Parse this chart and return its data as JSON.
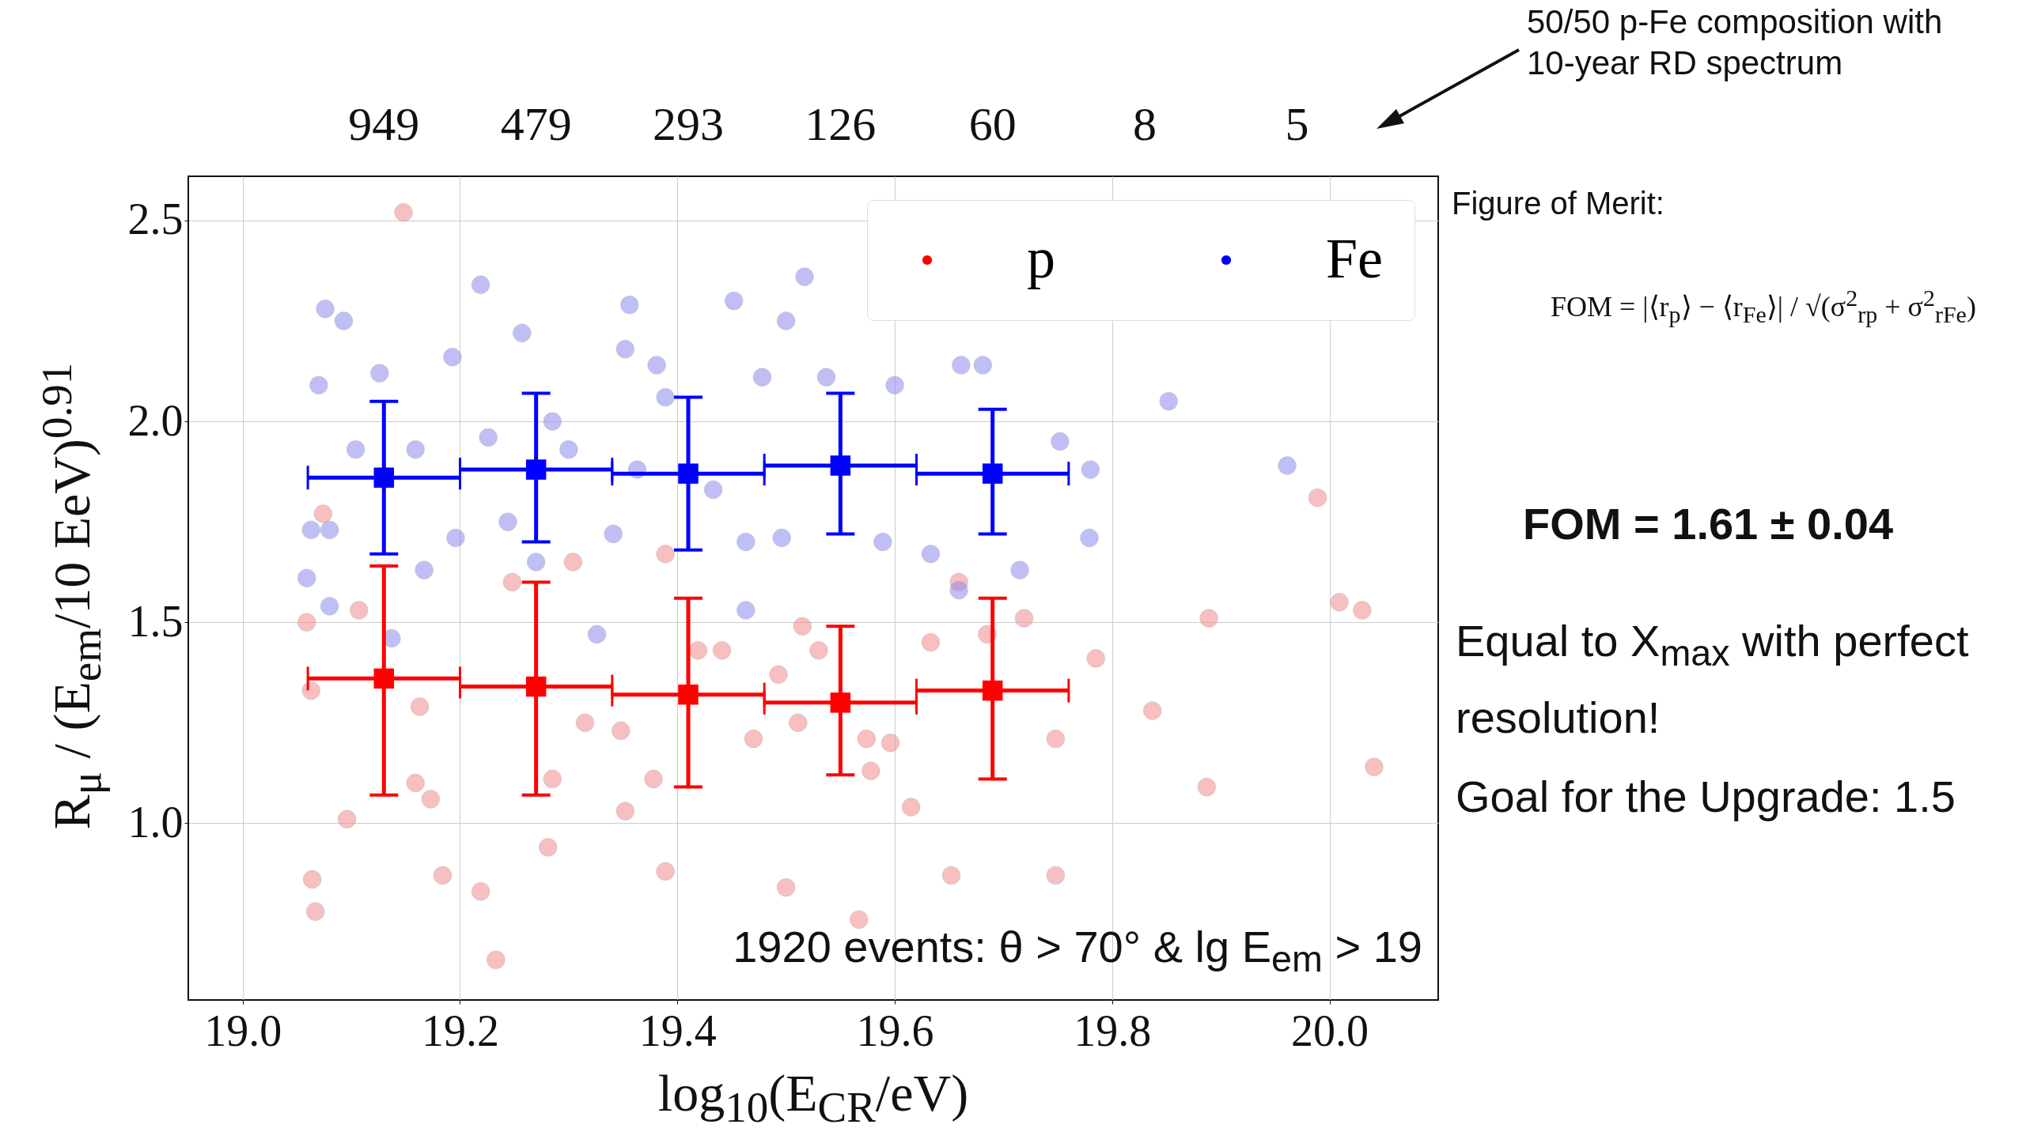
{
  "chart_data": {
    "type": "scatter",
    "xlabel": "log$_{10}$(E$_{CR}$/eV)",
    "ylabel": "R$_{μ}$ / (E$_{em}$/10 EeV)$^{0.91}$",
    "xlim": [
      18.95,
      20.1
    ],
    "xticks": [
      {
        "value": 19.0,
        "label": "19.0"
      },
      19.2,
      19.4,
      19.6,
      19.8,
      {
        "value": 20.0,
        "label": "20.0"
      }
    ],
    "ylim": [
      0.56,
      2.61
    ],
    "yticks": [
      {
        "value": 1.0,
        "label": "1.0"
      },
      1.5,
      {
        "value": 2.0,
        "label": "2.0"
      },
      2.5
    ],
    "grid": true,
    "legend": "top right",
    "marker": "circle",
    "series": [
      {
        "color": "#f28c8c",
        "x": [
          19.148,
          19.059,
          19.064,
          19.067,
          19.096,
          19.233,
          19.184,
          19.173,
          19.159,
          19.074,
          19.063,
          19.107,
          19.163,
          19.248,
          19.304,
          19.285,
          19.315,
          19.348,
          19.352,
          19.389,
          19.378,
          19.419,
          19.441,
          19.47,
          19.493,
          19.515,
          19.53,
          19.511,
          19.574,
          19.578,
          19.615,
          19.596,
          19.633,
          19.659,
          19.685,
          19.719,
          19.748,
          19.748,
          19.567,
          19.785,
          19.837,
          19.889,
          19.887,
          19.989,
          20.009,
          20.03,
          20.041,
          19.219,
          19.389,
          19.5,
          19.652,
          19.281
        ],
        "values": [
          2.52,
          1.5,
          0.86,
          0.78,
          1.01,
          0.66,
          0.87,
          1.06,
          1.1,
          1.77,
          1.33,
          1.53,
          1.29,
          1.6,
          1.65,
          1.11,
          1.25,
          1.23,
          1.03,
          1.67,
          1.11,
          1.43,
          1.43,
          1.21,
          1.37,
          1.49,
          1.43,
          1.25,
          1.21,
          1.13,
          1.04,
          1.2,
          1.45,
          1.6,
          1.47,
          1.51,
          1.21,
          0.87,
          0.76,
          1.41,
          1.28,
          1.51,
          1.09,
          1.81,
          1.55,
          1.53,
          1.14,
          0.83,
          0.88,
          0.84,
          0.87,
          0.94
        ]
      },
      {
        "color": "#8c8cf0",
        "x": [
          19.076,
          19.093,
          19.219,
          19.257,
          19.352,
          19.356,
          19.452,
          19.517,
          19.5,
          19.126,
          19.07,
          19.193,
          19.285,
          19.381,
          19.389,
          19.478,
          19.537,
          19.6,
          19.661,
          19.681,
          19.752,
          19.78,
          19.779,
          19.852,
          19.961,
          19.063,
          19.08,
          19.059,
          19.08,
          19.167,
          19.196,
          19.244,
          19.27,
          19.341,
          19.463,
          19.496,
          19.589,
          19.633,
          19.659,
          19.715,
          19.326,
          19.463,
          19.137,
          19.104,
          19.159,
          19.226,
          19.3,
          19.363,
          19.433
        ],
        "values": [
          2.28,
          2.25,
          2.34,
          2.22,
          2.18,
          2.29,
          2.3,
          2.36,
          2.25,
          2.12,
          2.09,
          2.16,
          2.0,
          2.14,
          2.06,
          2.11,
          2.11,
          2.09,
          2.14,
          2.14,
          1.95,
          1.88,
          1.71,
          2.05,
          1.89,
          1.73,
          1.73,
          1.61,
          1.54,
          1.63,
          1.71,
          1.75,
          1.65,
          1.72,
          1.7,
          1.71,
          1.7,
          1.67,
          1.58,
          1.63,
          1.47,
          1.53,
          1.46,
          1.93,
          1.93,
          1.96,
          1.93,
          1.88,
          1.83
        ]
      },
      {
        "name": "p",
        "color": "#ff0000",
        "marker": "square",
        "x": [
          19.13,
          19.27,
          19.41,
          19.55,
          19.69
        ],
        "values": [
          1.36,
          1.34,
          1.32,
          1.3,
          1.33
        ],
        "errors": [
          [
            1.07,
            1.64
          ],
          [
            1.07,
            1.6
          ],
          [
            1.09,
            1.56
          ],
          [
            1.12,
            1.49
          ],
          [
            1.11,
            1.56
          ]
        ],
        "xerrors": [
          0.07,
          0.07,
          0.07,
          0.07,
          0.07
        ]
      },
      {
        "name": "Fe",
        "color": "#0000ff",
        "marker": "square",
        "x": [
          19.13,
          19.27,
          19.41,
          19.55,
          19.69
        ],
        "values": [
          1.86,
          1.88,
          1.87,
          1.89,
          1.87
        ],
        "errors": [
          [
            1.67,
            2.05
          ],
          [
            1.7,
            2.07
          ],
          [
            1.68,
            2.06
          ],
          [
            1.72,
            2.07
          ],
          [
            1.72,
            2.03
          ]
        ],
        "xerrors": [
          0.07,
          0.07,
          0.07,
          0.07,
          0.07
        ]
      }
    ],
    "annotations": [
      "1920 events: θ > 70° & lg E$_{em}$ > 19",
      "50/50 p-Fe composition with 10-year RD spectrum",
      "Figure of Merit:",
      "FOM = |⟨r$_{p}$⟩ − ⟨r$_{Fe}$⟩| / √(σ$^{2}$$_{rp}$ + σ$^{2}$$_{rFe}$)",
      "FOM = 1.61 ± 0.04",
      "Equal to X$_{max}$ with perfect resolution!",
      "Goal for the Upgrade: 1.5",
      "949",
      "479",
      "293",
      "126",
      "60",
      "8",
      "5"
    ]
  }
}
